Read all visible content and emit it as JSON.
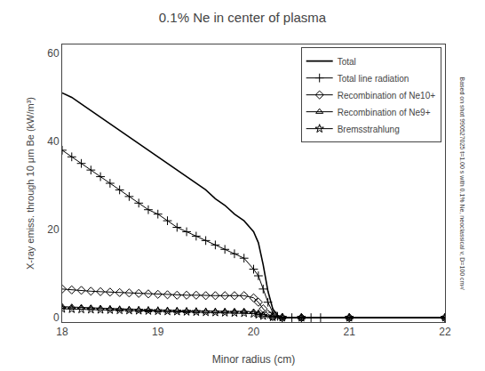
{
  "chart_data": {
    "type": "line",
    "title": "0.1% Ne in center of plasma",
    "xlabel": "Minor radius (cm)",
    "ylabel": "X-ray emiss. through 10 μm Be (kW/m³)",
    "annotations": [
      "Based on shot 990527025 t=1.00 s with 0.1% Ne, neoclassical v, D=100 cm²/"
    ],
    "xlim": [
      18,
      22
    ],
    "ylim": [
      -1,
      62
    ],
    "xticks": [
      18,
      19,
      20,
      21,
      22
    ],
    "yticks": [
      0,
      20,
      40,
      60
    ],
    "grid": false,
    "legend": "upper right",
    "series": [
      {
        "name": "Total",
        "color": "#000000",
        "marker": "none",
        "line_style": "solid",
        "x": [
          18.0,
          18.1,
          18.2,
          18.3,
          18.4,
          18.5,
          18.6,
          18.7,
          18.8,
          18.9,
          19.0,
          19.1,
          19.2,
          19.3,
          19.4,
          19.5,
          19.6,
          19.7,
          19.8,
          19.9,
          20.0,
          20.05,
          20.1,
          20.15,
          20.2,
          20.25,
          20.3,
          20.4,
          20.5,
          20.6,
          20.7,
          20.8,
          21.0,
          22.0
        ],
        "values": [
          51.0,
          50.0,
          48.5,
          47.0,
          45.5,
          44.0,
          42.5,
          41.0,
          39.5,
          38.0,
          36.5,
          35.0,
          33.5,
          32.0,
          30.5,
          29.0,
          27.0,
          25.5,
          23.5,
          22.0,
          19.5,
          17.0,
          12.0,
          6.0,
          2.0,
          0.5,
          0.1,
          0.0,
          0.0,
          0.0,
          0.0,
          0.0,
          0.0,
          0.0
        ]
      },
      {
        "name": "Total line radiation",
        "color": "#000000",
        "marker": "plus",
        "line_style": "solid",
        "x": [
          18.0,
          18.1,
          18.2,
          18.3,
          18.4,
          18.5,
          18.6,
          18.7,
          18.8,
          18.9,
          19.0,
          19.1,
          19.2,
          19.3,
          19.4,
          19.5,
          19.6,
          19.7,
          19.8,
          19.9,
          20.0,
          20.05,
          20.1,
          20.15,
          20.2,
          20.25,
          20.3,
          20.4,
          20.5,
          20.6,
          20.7,
          21.0,
          22.0
        ],
        "values": [
          38.0,
          36.5,
          35.0,
          33.5,
          32.0,
          30.5,
          29.0,
          27.5,
          26.0,
          24.5,
          23.5,
          22.0,
          20.5,
          19.5,
          18.5,
          17.5,
          16.5,
          15.5,
          14.5,
          13.5,
          11.0,
          9.5,
          6.5,
          3.5,
          1.2,
          0.3,
          0.05,
          0.0,
          0.0,
          0.0,
          0.0,
          0.0,
          0.0
        ]
      },
      {
        "name": "Recombination of Ne10+",
        "color": "#000000",
        "marker": "diamond",
        "line_style": "solid",
        "x": [
          18.0,
          18.1,
          18.2,
          18.3,
          18.4,
          18.5,
          18.6,
          18.7,
          18.8,
          18.9,
          19.0,
          19.1,
          19.2,
          19.3,
          19.4,
          19.5,
          19.6,
          19.7,
          19.8,
          19.9,
          20.0,
          20.05,
          20.1,
          20.15,
          20.2,
          20.3,
          20.5,
          21.0,
          22.0
        ],
        "values": [
          6.5,
          6.3,
          6.2,
          6.0,
          5.9,
          5.8,
          5.7,
          5.6,
          5.5,
          5.4,
          5.3,
          5.2,
          5.1,
          5.1,
          5.1,
          5.0,
          5.0,
          5.0,
          5.0,
          5.0,
          4.5,
          3.5,
          2.0,
          0.8,
          0.2,
          0.0,
          0.0,
          0.0,
          0.0
        ]
      },
      {
        "name": "Recombination of Ne9+",
        "color": "#000000",
        "marker": "triangle",
        "line_style": "solid",
        "x": [
          18.0,
          18.1,
          18.2,
          18.3,
          18.4,
          18.5,
          18.6,
          18.7,
          18.8,
          18.9,
          19.0,
          19.1,
          19.2,
          19.3,
          19.4,
          19.5,
          19.6,
          19.7,
          19.8,
          19.9,
          20.0,
          20.05,
          20.1,
          20.2,
          20.3,
          20.5,
          21.0,
          22.0
        ],
        "values": [
          2.5,
          2.4,
          2.3,
          2.2,
          2.1,
          2.0,
          1.9,
          1.8,
          1.75,
          1.7,
          1.65,
          1.6,
          1.55,
          1.5,
          1.45,
          1.4,
          1.4,
          1.4,
          1.4,
          1.45,
          1.3,
          1.0,
          0.6,
          0.15,
          0.02,
          0.0,
          0.0,
          0.0
        ]
      },
      {
        "name": "Bremsstrahlung",
        "color": "#000000",
        "marker": "star",
        "line_style": "solid",
        "x": [
          18.0,
          18.1,
          18.2,
          18.3,
          18.4,
          18.5,
          18.6,
          18.7,
          18.8,
          18.9,
          19.0,
          19.1,
          19.2,
          19.3,
          19.4,
          19.5,
          19.6,
          19.7,
          19.8,
          19.9,
          20.0,
          20.05,
          20.1,
          20.2,
          20.3,
          20.5,
          21.0,
          22.0
        ],
        "values": [
          2.0,
          1.95,
          1.9,
          1.85,
          1.8,
          1.75,
          1.7,
          1.65,
          1.6,
          1.55,
          1.5,
          1.45,
          1.4,
          1.35,
          1.3,
          1.25,
          1.2,
          1.15,
          1.1,
          1.05,
          0.9,
          0.7,
          0.4,
          0.1,
          0.01,
          0.0,
          0.0,
          0.0
        ]
      }
    ]
  }
}
